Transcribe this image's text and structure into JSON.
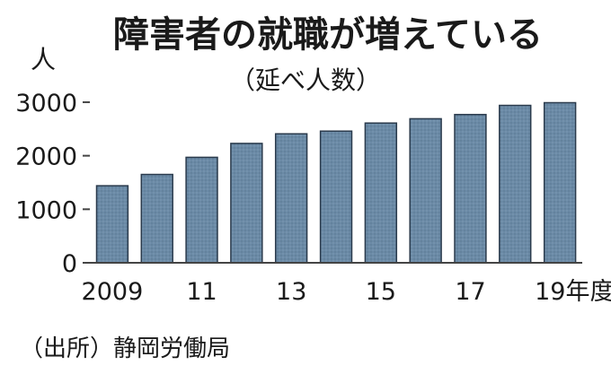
{
  "chart_data": {
    "type": "bar",
    "title": "障害者の就職が増えている",
    "subtitle": "（延べ人数）",
    "y_unit": "人",
    "categories": [
      "2009",
      "2010",
      "2011",
      "2012",
      "2013",
      "2014",
      "2015",
      "2016",
      "2017",
      "2018",
      "2019"
    ],
    "values": [
      1440,
      1650,
      1970,
      2230,
      2410,
      2460,
      2610,
      2690,
      2770,
      2940,
      2990
    ],
    "x_tick_labels": [
      "2009",
      "",
      "11",
      "",
      "13",
      "",
      "15",
      "",
      "17",
      "",
      "19年度"
    ],
    "y_ticks": [
      0,
      1000,
      2000,
      3000
    ],
    "ylim": [
      0,
      3200
    ],
    "grid": false,
    "bar_color": "#6b8aa6",
    "bar_edge_color": "#2a3a4c",
    "axis_color": "#444444"
  },
  "source": "（出所）静岡労働局"
}
